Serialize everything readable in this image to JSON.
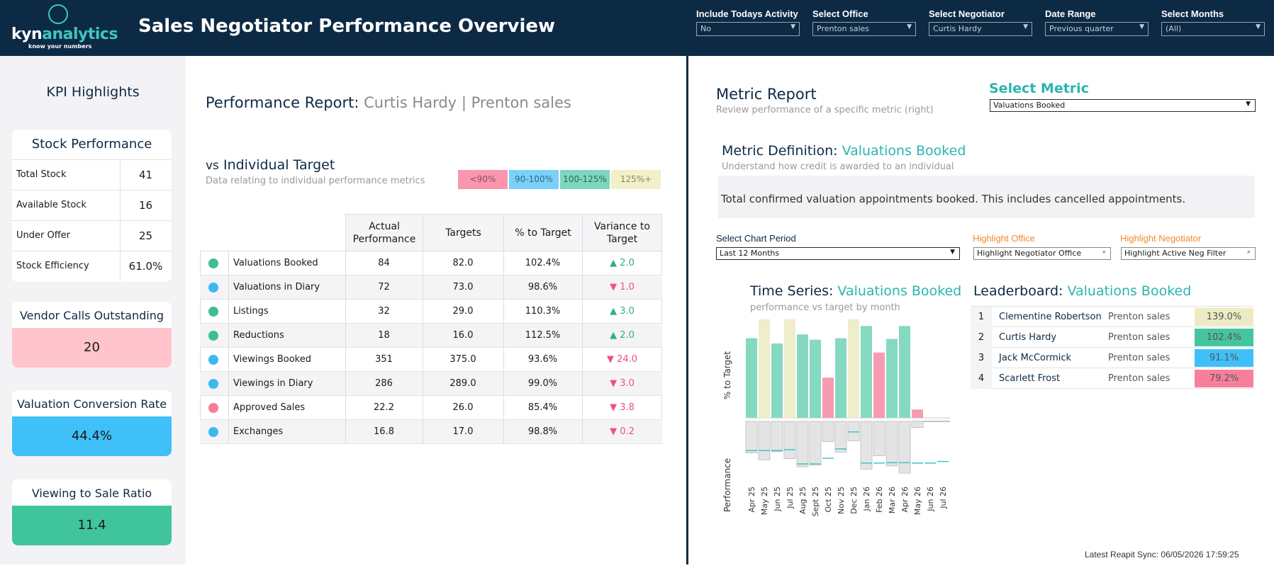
{
  "header": {
    "logo_main": "kyn",
    "logo_accent": "analytics",
    "logo_tagline": "know your numbers",
    "title": "Sales Negotiator Performance Overview",
    "filters": [
      {
        "label": "Include Todays Activity",
        "value": "No"
      },
      {
        "label": "Select Office",
        "value": "Prenton sales"
      },
      {
        "label": "Select Negotiator",
        "value": "Curtis Hardy"
      },
      {
        "label": "Date Range",
        "value": "Previous quarter"
      },
      {
        "label": "Select Months",
        "value": "(All)"
      }
    ]
  },
  "kpi": {
    "title": "KPI Highlights",
    "stock": {
      "title": "Stock Performance",
      "rows": [
        {
          "label": "Total Stock",
          "value": "41"
        },
        {
          "label": "Available Stock",
          "value": "16"
        },
        {
          "label": "Under Offer",
          "value": "25"
        },
        {
          "label": "Stock Efficiency",
          "value": "61.0%"
        }
      ]
    },
    "cards": [
      {
        "title": "Vendor Calls Outstanding",
        "value": "20",
        "color": "#ffc4cc"
      },
      {
        "title": "Valuation Conversion Rate",
        "value": "44.4%",
        "color": "#40c0f8"
      },
      {
        "title": "Viewing to Sale Ratio",
        "value": "11.4",
        "color": "#3fc49c"
      }
    ]
  },
  "report": {
    "title_prefix": "Performance Report:",
    "negotiator": "Curtis Hardy",
    "sep": "|",
    "office": "Prenton sales",
    "vs_prefix": "vs",
    "vs_title": "Individual Target",
    "vs_subtitle": "Data relating to individual performance metrics",
    "legend": [
      {
        "label": "<90%",
        "color": "#fa96b0",
        "text": "#8a4e5c"
      },
      {
        "label": "90-100%",
        "color": "#7bd0f7",
        "text": "#2c6a8a"
      },
      {
        "label": "100-125%",
        "color": "#7fd6be",
        "text": "#2a6b56"
      },
      {
        "label": "125%+",
        "color": "#f1f0c8",
        "text": "#8a8760"
      }
    ],
    "columns": [
      "Actual Performance",
      "Targets",
      "% to Target",
      "Variance to Target"
    ],
    "rows": [
      {
        "name": "Valuations Booked",
        "actual": "84",
        "target": "82.0",
        "pct": "102.4%",
        "var": "▲ 2.0",
        "up": true,
        "dot": "#3cbf94"
      },
      {
        "name": "Valuations in Diary",
        "actual": "72",
        "target": "73.0",
        "pct": "98.6%",
        "var": "▼ 1.0",
        "up": false,
        "dot": "#3fb7f2"
      },
      {
        "name": "Listings",
        "actual": "32",
        "target": "29.0",
        "pct": "110.3%",
        "var": "▲ 3.0",
        "up": true,
        "dot": "#3cbf94"
      },
      {
        "name": "Reductions",
        "actual": "18",
        "target": "16.0",
        "pct": "112.5%",
        "var": "▲ 2.0",
        "up": true,
        "dot": "#3cbf94"
      },
      {
        "name": "Viewings Booked",
        "actual": "351",
        "target": "375.0",
        "pct": "93.6%",
        "var": "▼ 24.0",
        "up": false,
        "dot": "#3fb7f2"
      },
      {
        "name": "Viewings in Diary",
        "actual": "286",
        "target": "289.0",
        "pct": "99.0%",
        "var": "▼ 3.0",
        "up": false,
        "dot": "#3fb7f2"
      },
      {
        "name": "Approved Sales",
        "actual": "22.2",
        "target": "26.0",
        "pct": "85.4%",
        "var": "▼ 3.8",
        "up": false,
        "dot": "#f47c99"
      },
      {
        "name": "Exchanges",
        "actual": "16.8",
        "target": "17.0",
        "pct": "98.8%",
        "var": "▼ 0.2",
        "up": false,
        "dot": "#3fb7f2"
      }
    ]
  },
  "metric": {
    "title": "Metric Report",
    "subtitle": "Review performance of a specific metric (right)",
    "select_label": "Select Metric",
    "select_value": "Valuations Booked",
    "def_prefix": "Metric Definition:",
    "def_metric": "Valuations Booked",
    "def_sub": "Understand how credit is awarded to an individual",
    "def_text": "Total confirmed valuation appointments booked. This includes cancelled appointments.",
    "chart_period_label": "Select Chart Period",
    "chart_period_value": "Last 12 Months",
    "highlight_office_label": "Highlight Office",
    "highlight_office_value": "Highlight Negotiator Office",
    "highlight_neg_label": "Highlight Negotiator",
    "highlight_neg_value": "Highlight Active Neg Filter",
    "ts_prefix": "Time Series:",
    "ts_metric": "Valuations Booked",
    "ts_sub": "performance vs target by month",
    "lb_prefix": "Leaderboard:",
    "lb_metric": "Valuations Booked",
    "leaderboard": [
      {
        "rank": "1",
        "name": "Clementine Robertson",
        "office": "Prenton sales",
        "pct": "139.0%",
        "color": "#ecebc4"
      },
      {
        "rank": "2",
        "name": "Curtis Hardy",
        "office": "Prenton sales",
        "pct": "102.4%",
        "color": "#45c4a0"
      },
      {
        "rank": "3",
        "name": "Jack McCormick",
        "office": "Prenton sales",
        "pct": "91.1%",
        "color": "#40c0f8"
      },
      {
        "rank": "4",
        "name": "Scarlett Frost",
        "office": "Prenton sales",
        "pct": "79.2%",
        "color": "#f77f9c"
      }
    ],
    "sync": "Latest Reapit Sync: 06/05/2026 17:59:25"
  },
  "chart_data": {
    "type": "bar",
    "ylabel_top": "% to Target",
    "ylabel_bottom": "Performance",
    "categories": [
      "Apr 25",
      "May 25",
      "Jun 25",
      "Jul 25",
      "Aug 25",
      "Sept 25",
      "Oct 25",
      "Nov 25",
      "Dec 25",
      "Jan 26",
      "Feb 26",
      "Mar 26",
      "Apr 26",
      "May 26",
      "Jun 26",
      "Jul 26"
    ],
    "pct_to_target": [
      105,
      130,
      98,
      130,
      110,
      103,
      53,
      105,
      130,
      121,
      86,
      104,
      121,
      11,
      0,
      0
    ],
    "bar_colors": [
      "#86d9c1",
      "#efeecb",
      "#86d9c1",
      "#efeecb",
      "#86d9c1",
      "#86d9c1",
      "#f89ab0",
      "#86d9c1",
      "#efeecb",
      "#86d9c1",
      "#f89ab0",
      "#86d9c1",
      "#86d9c1",
      "#f89ab0",
      "",
      ""
    ],
    "performance": [
      78,
      95,
      75,
      92,
      112,
      108,
      50,
      76,
      48,
      118,
      85,
      110,
      128,
      15,
      0,
      0
    ],
    "target": [
      72,
      72,
      72,
      70,
      105,
      105,
      91,
      68,
      26,
      103,
      103,
      102,
      102,
      103,
      103,
      99
    ]
  }
}
